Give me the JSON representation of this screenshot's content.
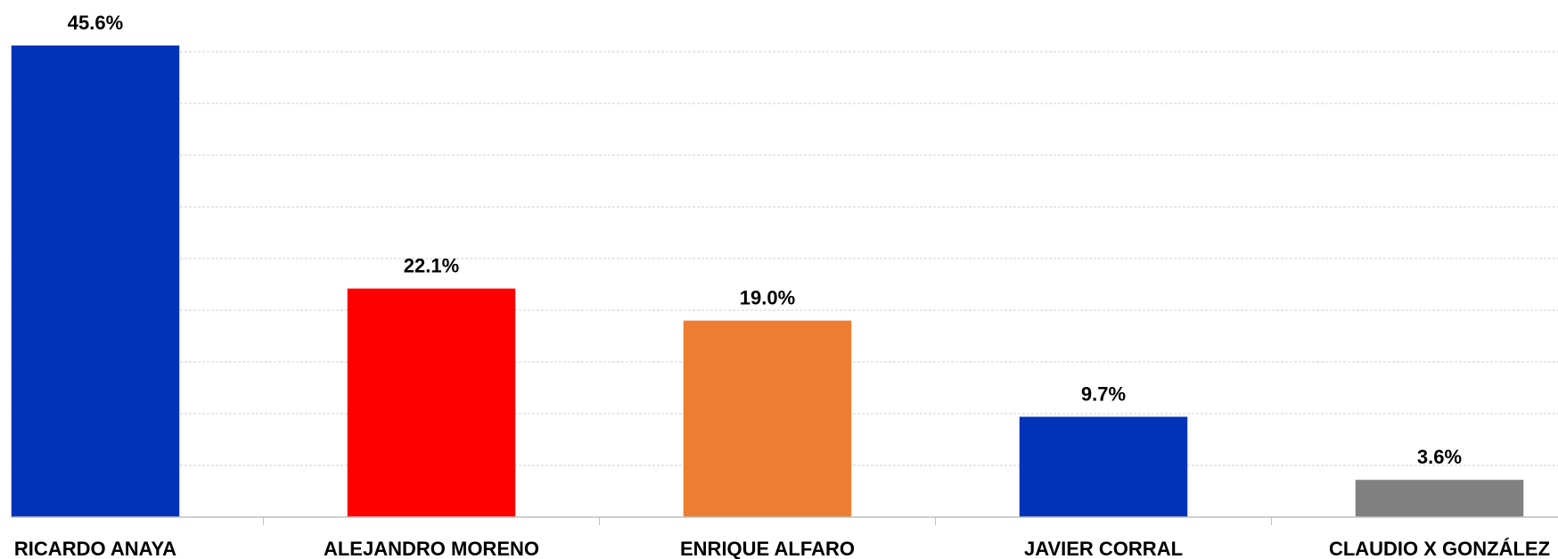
{
  "chart_data": {
    "type": "bar",
    "categories": [
      "RICARDO ANAYA",
      "ALEJANDRO MORENO",
      "ENRIQUE ALFARO",
      "JAVIER CORRAL",
      "CLAUDIO X GONZÁLEZ"
    ],
    "values": [
      45.6,
      22.1,
      19.0,
      9.7,
      3.6
    ],
    "value_labels": [
      "45.6%",
      "22.1%",
      "19.0%",
      "9.7%",
      "3.6%"
    ],
    "colors": [
      "#0033b8",
      "#ff0000",
      "#ed7d31",
      "#0033b8",
      "#808080"
    ],
    "ylim": [
      0,
      50
    ],
    "yticks": [
      0,
      5,
      10,
      15,
      20,
      25,
      30,
      35,
      40,
      45
    ],
    "grid": true
  }
}
